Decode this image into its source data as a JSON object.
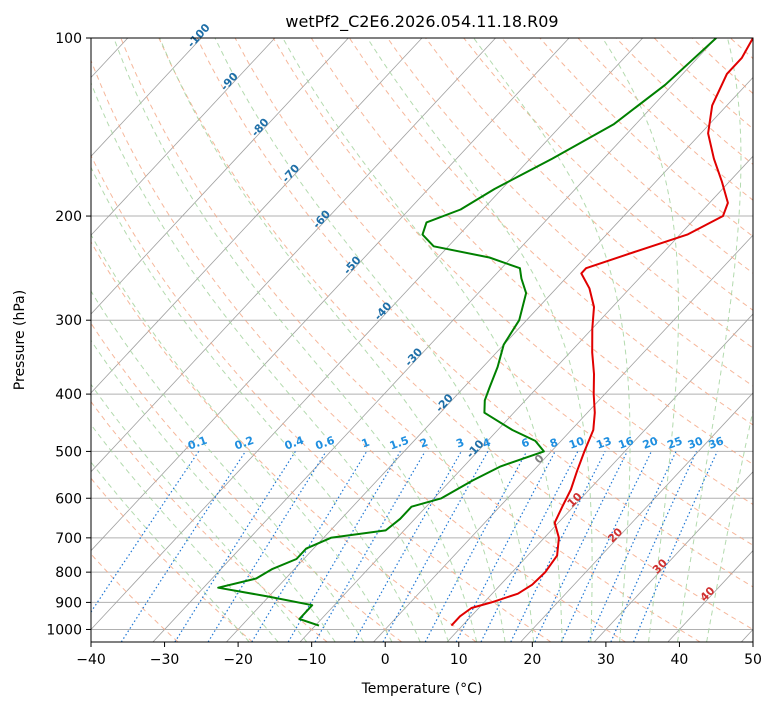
{
  "chart_data": {
    "type": "line",
    "title": "wetPf2_C2E6.2026.054.11.18.R09",
    "xlabel": "Temperature (°C)",
    "ylabel": "Pressure (hPa)",
    "xlim": [
      -40,
      50
    ],
    "ylim": [
      1050,
      100
    ],
    "y_scale": "log",
    "grid": true,
    "x_ticks": [
      -40,
      -30,
      -20,
      -10,
      0,
      10,
      20,
      30,
      40,
      50
    ],
    "y_ticks": [
      100,
      200,
      300,
      400,
      500,
      600,
      700,
      800,
      900,
      1000
    ],
    "skew_deg_per_log_decade": 75,
    "series": [
      {
        "color": "#e00000",
        "points": [
          {
            "p": 985,
            "t": 8.5
          },
          {
            "p": 950,
            "t": 8.5
          },
          {
            "p": 920,
            "t": 9.0
          },
          {
            "p": 900,
            "t": 11.0
          },
          {
            "p": 870,
            "t": 13.5
          },
          {
            "p": 840,
            "t": 14.3
          },
          {
            "p": 800,
            "t": 14.5
          },
          {
            "p": 750,
            "t": 14.0
          },
          {
            "p": 700,
            "t": 12.0
          },
          {
            "p": 660,
            "t": 9.5
          },
          {
            "p": 620,
            "t": 8.5
          },
          {
            "p": 580,
            "t": 7.5
          },
          {
            "p": 540,
            "t": 6.0
          },
          {
            "p": 500,
            "t": 4.5
          },
          {
            "p": 460,
            "t": 3.0
          },
          {
            "p": 430,
            "t": 1.0
          },
          {
            "p": 400,
            "t": -1.5
          },
          {
            "p": 370,
            "t": -4.0
          },
          {
            "p": 340,
            "t": -7.0
          },
          {
            "p": 310,
            "t": -10.0
          },
          {
            "p": 285,
            "t": -12.5
          },
          {
            "p": 265,
            "t": -15.5
          },
          {
            "p": 250,
            "t": -18.5
          },
          {
            "p": 245,
            "t": -18.5
          },
          {
            "p": 230,
            "t": -14.0
          },
          {
            "p": 215,
            "t": -9.0
          },
          {
            "p": 200,
            "t": -6.5
          },
          {
            "p": 190,
            "t": -7.5
          },
          {
            "p": 175,
            "t": -11.0
          },
          {
            "p": 160,
            "t": -15.0
          },
          {
            "p": 145,
            "t": -19.0
          },
          {
            "p": 130,
            "t": -22.0
          },
          {
            "p": 115,
            "t": -24.0
          },
          {
            "p": 108,
            "t": -24.0
          },
          {
            "p": 100,
            "t": -25.0
          }
        ]
      },
      {
        "color": "#008000",
        "points": [
          {
            "p": 985,
            "t": -9.5
          },
          {
            "p": 960,
            "t": -13.0
          },
          {
            "p": 930,
            "t": -13.0
          },
          {
            "p": 910,
            "t": -13.0
          },
          {
            "p": 880,
            "t": -20.0
          },
          {
            "p": 850,
            "t": -28.0
          },
          {
            "p": 820,
            "t": -24.0
          },
          {
            "p": 790,
            "t": -23.0
          },
          {
            "p": 760,
            "t": -21.0
          },
          {
            "p": 730,
            "t": -21.0
          },
          {
            "p": 700,
            "t": -19.0
          },
          {
            "p": 680,
            "t": -12.5
          },
          {
            "p": 650,
            "t": -12.0
          },
          {
            "p": 620,
            "t": -12.0
          },
          {
            "p": 600,
            "t": -9.0
          },
          {
            "p": 560,
            "t": -7.0
          },
          {
            "p": 530,
            "t": -5.0
          },
          {
            "p": 500,
            "t": -1.0
          },
          {
            "p": 480,
            "t": -3.5
          },
          {
            "p": 460,
            "t": -8.0
          },
          {
            "p": 430,
            "t": -14.0
          },
          {
            "p": 410,
            "t": -15.5
          },
          {
            "p": 390,
            "t": -16.5
          },
          {
            "p": 360,
            "t": -18.0
          },
          {
            "p": 330,
            "t": -20.0
          },
          {
            "p": 300,
            "t": -21.0
          },
          {
            "p": 270,
            "t": -23.5
          },
          {
            "p": 255,
            "t": -26.0
          },
          {
            "p": 245,
            "t": -27.5
          },
          {
            "p": 235,
            "t": -33.0
          },
          {
            "p": 225,
            "t": -42.0
          },
          {
            "p": 215,
            "t": -45.0
          },
          {
            "p": 205,
            "t": -46.0
          },
          {
            "p": 195,
            "t": -43.0
          },
          {
            "p": 180,
            "t": -41.0
          },
          {
            "p": 160,
            "t": -37.0
          },
          {
            "p": 140,
            "t": -33.0
          },
          {
            "p": 120,
            "t": -31.0
          },
          {
            "p": 100,
            "t": -30.0
          }
        ]
      }
    ],
    "mixing_ratio_labels": [
      "0.1",
      "0.2",
      "0.4",
      "0.6",
      "1",
      "1.5",
      "2",
      "3",
      "4",
      "6",
      "8",
      "10",
      "13",
      "16",
      "20",
      "25",
      "30",
      "36"
    ],
    "dry_adiabat_labels": [
      "-100",
      "-90",
      "-80",
      "-70",
      "-60",
      "-50",
      "-40",
      "-30",
      "-20",
      "-10"
    ],
    "moist_adiabat_labels": [
      "0",
      "10",
      "20",
      "30",
      "40"
    ],
    "colors": {
      "temperature": "#e00000",
      "dewpoint": "#008000",
      "isotherm": "#a0a0a0",
      "dry_adiabat": "#f4a582",
      "moist_adiabat": "#a6d3a0",
      "mixing_ratio": "#1f77d4",
      "dry_label": "#1f6fa8",
      "mix_label": "#1f8fe0",
      "moist_label": "#d03030"
    }
  }
}
